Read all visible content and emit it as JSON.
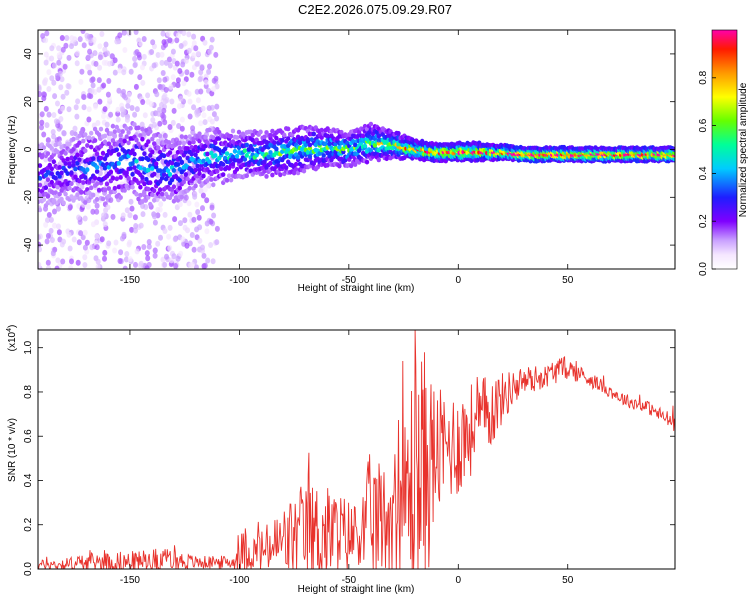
{
  "figure_title": "C2E2.2026.075.09.29.R07",
  "chart_data": [
    {
      "type": "heatmap",
      "title": "C2E2.2026.075.09.29.R07",
      "xlabel": "Height of straight line (km)",
      "ylabel": "Frequency (Hz)",
      "xlim": [
        -192,
        99
      ],
      "ylim": [
        -50,
        50
      ],
      "x_ticks": [
        -150,
        -100,
        -50,
        0,
        50
      ],
      "x_tick_labels": [
        "-150",
        "-100",
        "-50",
        "0",
        "50"
      ],
      "y_ticks": [
        -40,
        -20,
        0,
        20,
        40
      ],
      "y_tick_labels": [
        "-40",
        "-20",
        "0",
        "20",
        "40"
      ],
      "colorbar": {
        "label": "Normalized spectral amplitude",
        "range": [
          0,
          1
        ],
        "ticks": [
          0.0,
          0.2,
          0.4,
          0.6,
          0.8
        ],
        "tick_labels": [
          "0.0",
          "0.2",
          "0.4",
          "0.6",
          "0.8"
        ],
        "colormap": "rainbow"
      },
      "ridge": {
        "x": [
          -192,
          -180,
          -170,
          -160,
          -150,
          -140,
          -130,
          -120,
          -110,
          -100,
          -90,
          -80,
          -70,
          -60,
          -50,
          -40,
          -30,
          -20,
          -10,
          0,
          10,
          20,
          30,
          40,
          50,
          60,
          70,
          80,
          90,
          99
        ],
        "frequency": [
          -12,
          -9,
          -7,
          -6,
          -4,
          -8,
          -9,
          -4,
          -3,
          -2,
          -2,
          -1,
          0,
          1,
          0,
          3,
          2,
          0,
          -1,
          -1,
          -1,
          -1,
          -2,
          -2,
          -2,
          -2,
          -2,
          -2,
          -2,
          -2
        ],
        "spread": [
          7,
          7,
          8,
          8,
          8,
          8,
          7,
          6,
          6,
          5,
          5,
          5,
          5,
          4,
          4,
          4,
          3,
          2,
          2,
          2,
          2,
          1.5,
          1.5,
          1.5,
          1.5,
          1.5,
          1.5,
          1.5,
          1.5,
          1.5
        ],
        "amplitude": [
          0.2,
          0.2,
          0.25,
          0.25,
          0.3,
          0.3,
          0.3,
          0.3,
          0.35,
          0.35,
          0.4,
          0.45,
          0.45,
          0.45,
          0.45,
          0.5,
          0.6,
          0.75,
          0.8,
          0.85,
          0.85,
          0.9,
          0.95,
          0.95,
          0.95,
          0.95,
          0.95,
          0.95,
          0.95,
          0.95
        ]
      }
    },
    {
      "type": "line",
      "xlabel": "Height of straight line (km)",
      "ylabel": "SNR (10 * v/v)",
      "y_scale_label": "(x10",
      "y_scale_exponent": "4",
      "xlim": [
        -192,
        99
      ],
      "ylim": [
        0,
        1.08
      ],
      "x_ticks": [
        -150,
        -100,
        -50,
        0,
        50
      ],
      "x_tick_labels": [
        "-150",
        "-100",
        "-50",
        "0",
        "50"
      ],
      "y_ticks": [
        0.0,
        0.2,
        0.4,
        0.6,
        0.8,
        1.0
      ],
      "y_tick_labels": [
        "0.0",
        "0.2",
        "0.4",
        "0.6",
        "0.8",
        "1.0"
      ],
      "series": [
        {
          "name": "SNR",
          "color": "#e8322c",
          "envelope_x": [
            -192,
            -180,
            -170,
            -160,
            -150,
            -140,
            -130,
            -120,
            -110,
            -102,
            -100,
            -95,
            -90,
            -85,
            -80,
            -75,
            -70,
            -65,
            -60,
            -55,
            -50,
            -45,
            -40,
            -35,
            -30,
            -25,
            -20,
            -15,
            -10,
            -5,
            0,
            5,
            10,
            15,
            20,
            25,
            30,
            35,
            40,
            45,
            50,
            55,
            60,
            65,
            70,
            75,
            80,
            85,
            90,
            95,
            99
          ],
          "envelope_mid": [
            0.02,
            0.02,
            0.03,
            0.03,
            0.03,
            0.04,
            0.04,
            0.03,
            0.03,
            0.03,
            0.08,
            0.07,
            0.08,
            0.1,
            0.12,
            0.14,
            0.15,
            0.16,
            0.16,
            0.16,
            0.15,
            0.16,
            0.2,
            0.22,
            0.25,
            0.3,
            0.4,
            0.45,
            0.52,
            0.55,
            0.57,
            0.62,
            0.68,
            0.72,
            0.77,
            0.82,
            0.85,
            0.86,
            0.87,
            0.9,
            0.91,
            0.88,
            0.86,
            0.83,
            0.8,
            0.77,
            0.75,
            0.74,
            0.71,
            0.68,
            0.66
          ],
          "envelope_amp": [
            0.02,
            0.03,
            0.04,
            0.05,
            0.05,
            0.05,
            0.05,
            0.03,
            0.03,
            0.03,
            0.1,
            0.08,
            0.1,
            0.13,
            0.17,
            0.2,
            0.22,
            0.24,
            0.22,
            0.2,
            0.17,
            0.14,
            0.35,
            0.25,
            0.3,
            0.35,
            0.6,
            0.55,
            0.3,
            0.25,
            0.25,
            0.22,
            0.18,
            0.18,
            0.12,
            0.08,
            0.07,
            0.06,
            0.05,
            0.06,
            0.05,
            0.04,
            0.04,
            0.03,
            0.03,
            0.03,
            0.03,
            0.03,
            0.03,
            0.04,
            0.04
          ],
          "peak_max": 1.08
        }
      ]
    }
  ]
}
